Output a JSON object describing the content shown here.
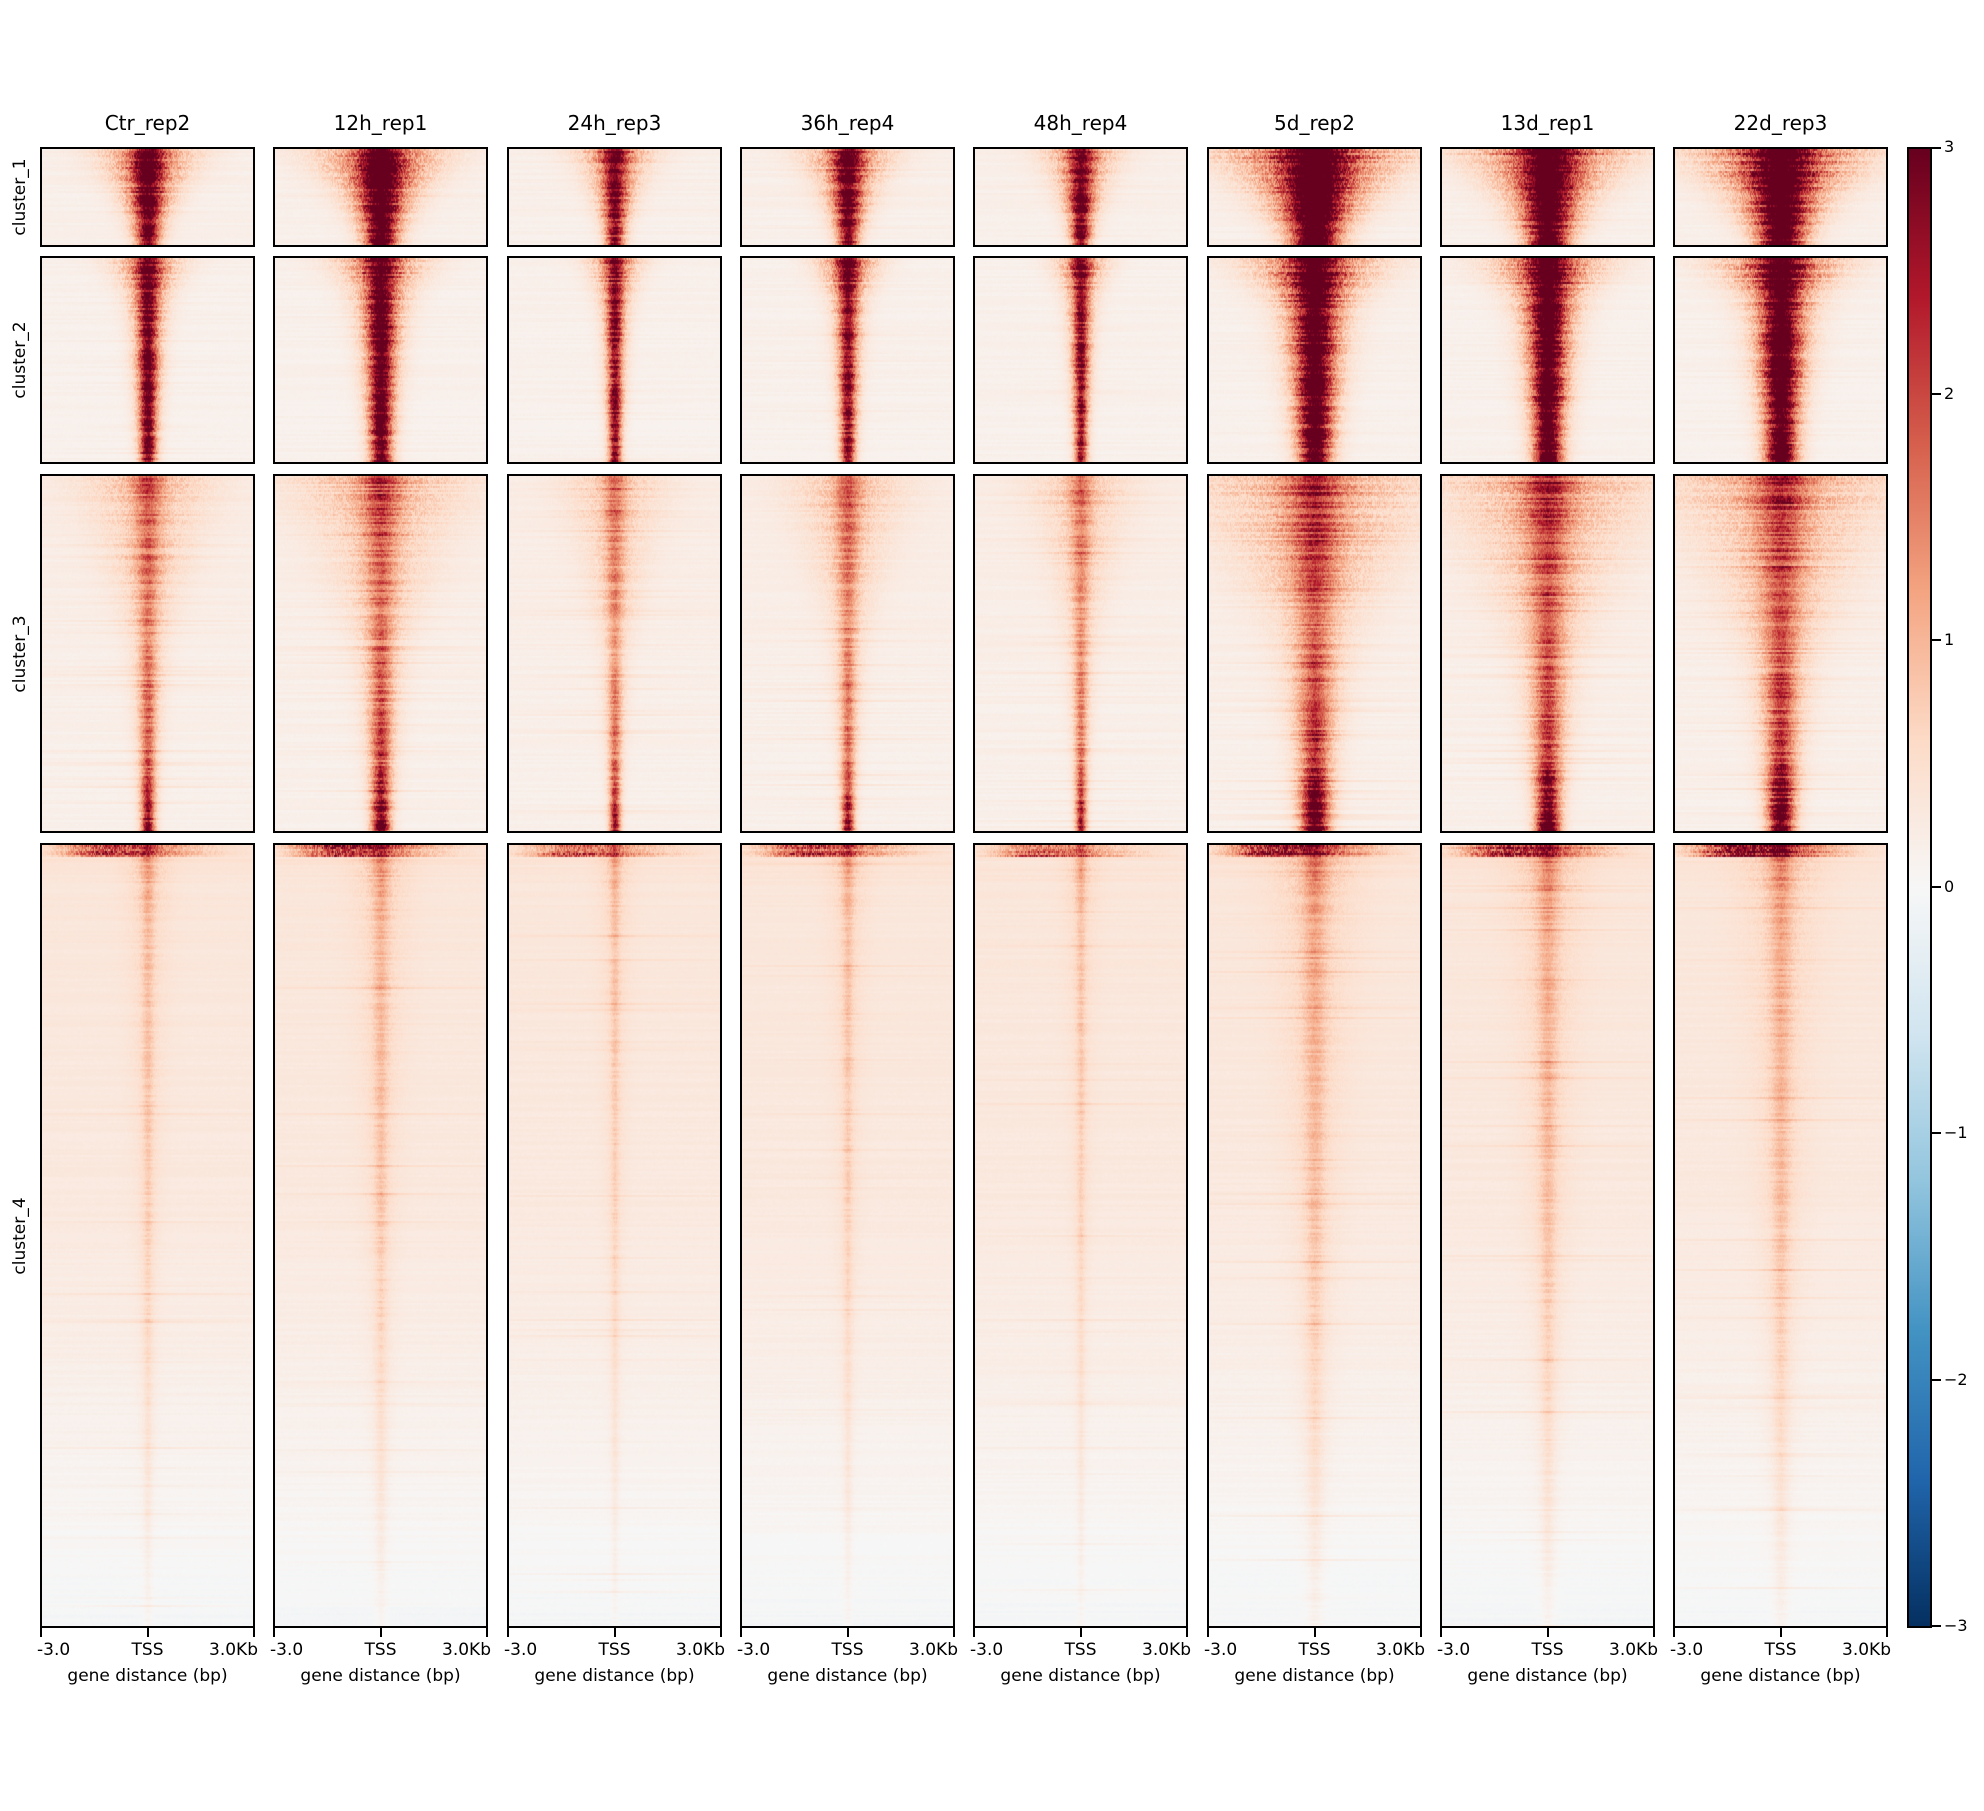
{
  "chart_data": {
    "type": "heatmap",
    "description": "TSS-centered signal heatmap matrix, 8 samples x 4 row clusters, red intensity scale",
    "columns": [
      "Ctr_rep2",
      "12h_rep1",
      "24h_rep3",
      "36h_rep4",
      "48h_rep4",
      "5d_rep2",
      "13d_rep1",
      "22d_rep3"
    ],
    "row_groups": [
      "cluster_1",
      "cluster_2",
      "cluster_3",
      "cluster_4"
    ],
    "row_group_relative_heights": [
      100,
      208,
      359,
      785
    ],
    "x": {
      "label": "gene distance (bp)",
      "tick_labels": [
        "-3.0",
        "TSS",
        "3.0Kb"
      ],
      "range_bp": [
        -3000,
        3000
      ],
      "center_label": "TSS"
    },
    "colorbar": {
      "tick_labels": [
        "3",
        "2",
        "1",
        "0",
        "−1",
        "−2",
        "−3"
      ],
      "tick_values": [
        3,
        2,
        1,
        0,
        -1,
        -2,
        -3
      ],
      "vmin": -3,
      "vmax": 3,
      "colormap": "RdBu_r",
      "stops_low_to_high": [
        "#053061",
        "#2166ac",
        "#4393c3",
        "#92c5de",
        "#d1e5f0",
        "#f7f7f7",
        "#fddbc7",
        "#f4a582",
        "#d6604d",
        "#b2182b",
        "#67001f"
      ]
    },
    "signal_model": {
      "column_factors": [
        {
          "name": "Ctr_rep2",
          "amplitude": 0.78,
          "width": 1.0
        },
        {
          "name": "12h_rep1",
          "amplitude": 0.88,
          "width": 1.3
        },
        {
          "name": "24h_rep3",
          "amplitude": 0.68,
          "width": 0.78
        },
        {
          "name": "36h_rep4",
          "amplitude": 0.72,
          "width": 0.9
        },
        {
          "name": "48h_rep4",
          "amplitude": 0.68,
          "width": 0.78
        },
        {
          "name": "5d_rep2",
          "amplitude": 1.0,
          "width": 1.9
        },
        {
          "name": "13d_rep1",
          "amplitude": 0.98,
          "width": 1.65
        },
        {
          "name": "22d_rep3",
          "amplitude": 1.0,
          "width": 1.8
        }
      ],
      "cluster_profiles": [
        {
          "name": "cluster_1",
          "amp": [
            [
              0,
              3.2
            ],
            [
              1,
              2.8
            ]
          ],
          "core": [
            [
              0,
              0.05
            ],
            [
              1,
              0.027
            ]
          ],
          "fringe": [
            [
              0,
              3.4
            ],
            [
              0.5,
              2.4
            ],
            [
              1,
              1.8
            ]
          ],
          "bg": [
            [
              0,
              0.18
            ],
            [
              1,
              0.16
            ]
          ],
          "streak": {
            "prob": 0.2,
            "mag": 0.3,
            "spread": 0.25
          }
        },
        {
          "name": "cluster_2",
          "amp": [
            [
              0,
              3.0
            ],
            [
              0.15,
              2.8
            ],
            [
              1,
              2.6
            ]
          ],
          "core": [
            [
              0,
              0.038
            ],
            [
              0.2,
              0.028
            ],
            [
              1,
              0.02
            ]
          ],
          "fringe": [
            [
              0,
              3.2
            ],
            [
              0.3,
              2.2
            ],
            [
              1,
              1.7
            ]
          ],
          "bg": [
            [
              0,
              0.16
            ],
            [
              1,
              0.14
            ]
          ],
          "streak": {
            "prob": 0.15,
            "mag": 0.3,
            "spread": 0.2
          }
        },
        {
          "name": "cluster_3",
          "amp": [
            [
              0,
              1.6
            ],
            [
              0.4,
              1.1
            ],
            [
              0.8,
              1.5
            ],
            [
              1,
              2.6
            ]
          ],
          "core": [
            [
              0,
              0.045
            ],
            [
              0.5,
              0.025
            ],
            [
              1,
              0.018
            ]
          ],
          "fringe": [
            [
              0,
              5.0
            ],
            [
              0.5,
              2.5
            ],
            [
              1,
              1.5
            ]
          ],
          "bg": [
            [
              0,
              0.22
            ],
            [
              0.6,
              0.18
            ],
            [
              1,
              0.16
            ]
          ],
          "streak": {
            "prob": 0.2,
            "mag": 0.45,
            "spread": 0.3
          }
        },
        {
          "name": "cluster_4",
          "amp": [
            [
              0,
              0.9
            ],
            [
              0.1,
              0.55
            ],
            [
              0.5,
              0.4
            ],
            [
              0.8,
              0.25
            ],
            [
              1,
              0.1
            ]
          ],
          "core": [
            [
              0,
              0.02
            ],
            [
              1,
              0.01
            ]
          ],
          "fringe": [
            [
              0,
              4.0
            ],
            [
              1,
              2.0
            ]
          ],
          "bg": [
            [
              0,
              0.36
            ],
            [
              0.45,
              0.3
            ],
            [
              0.7,
              0.17
            ],
            [
              0.9,
              0.02
            ],
            [
              1,
              -0.05
            ]
          ],
          "streak": {
            "prob": 0.06,
            "mag": 0.4,
            "spread": 0.45
          },
          "top_band": {
            "depth": 0.013,
            "value": 1.9
          }
        }
      ]
    }
  },
  "colors": {
    "panel_border": "#000000",
    "text": "#000000",
    "background": "#ffffff"
  }
}
